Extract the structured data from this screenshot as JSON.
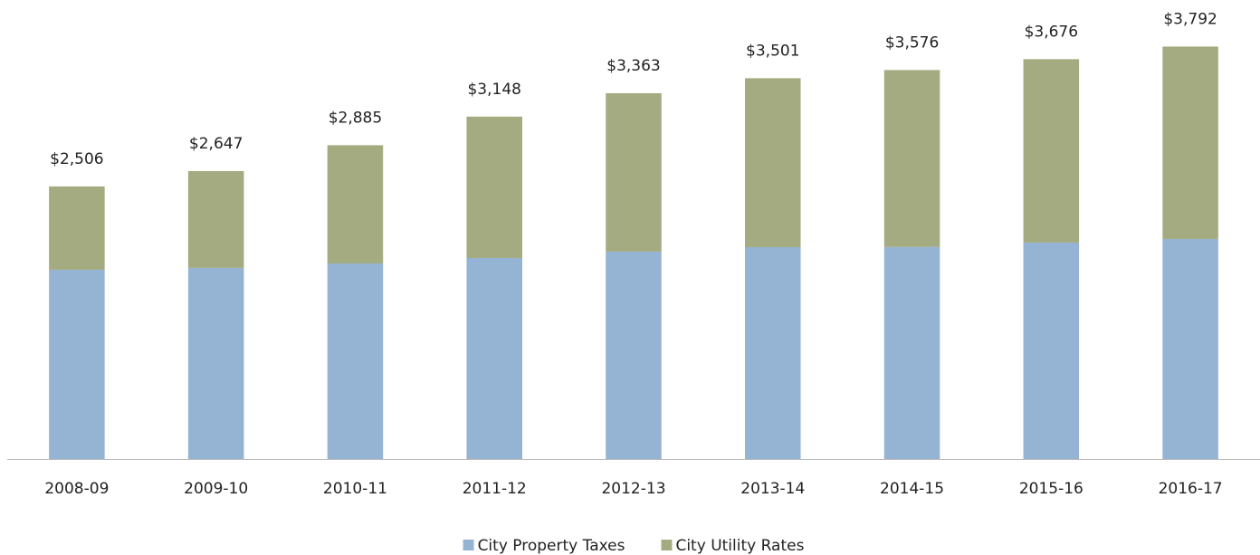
{
  "chart_data": {
    "type": "stacked-bar",
    "categories": [
      "2008-09",
      "2009-10",
      "2010-11",
      "2011-12",
      "2012-13",
      "2013-14",
      "2014-15",
      "2015-16",
      "2016-17"
    ],
    "series": [
      {
        "name": "City Property Taxes",
        "color": "#95b3d2",
        "values": [
          1740,
          1757,
          1798,
          1848,
          1907,
          1948,
          1950,
          1990,
          2023
        ]
      },
      {
        "name": "City Utility Rates",
        "color": "#a5ab80",
        "values": [
          766,
          890,
          1087,
          1300,
          1456,
          1553,
          1626,
          1686,
          1769
        ]
      }
    ],
    "totals": [
      2506,
      2647,
      2885,
      3148,
      3363,
      3501,
      3576,
      3676,
      3792
    ],
    "total_labels": [
      "$2,506",
      "$2,647",
      "$2,885",
      "$3,148",
      "$3,363",
      "$3,501",
      "$3,576",
      "$3,676",
      "$3,792"
    ],
    "ylim": [
      0,
      4220
    ],
    "legend": "bottom"
  }
}
